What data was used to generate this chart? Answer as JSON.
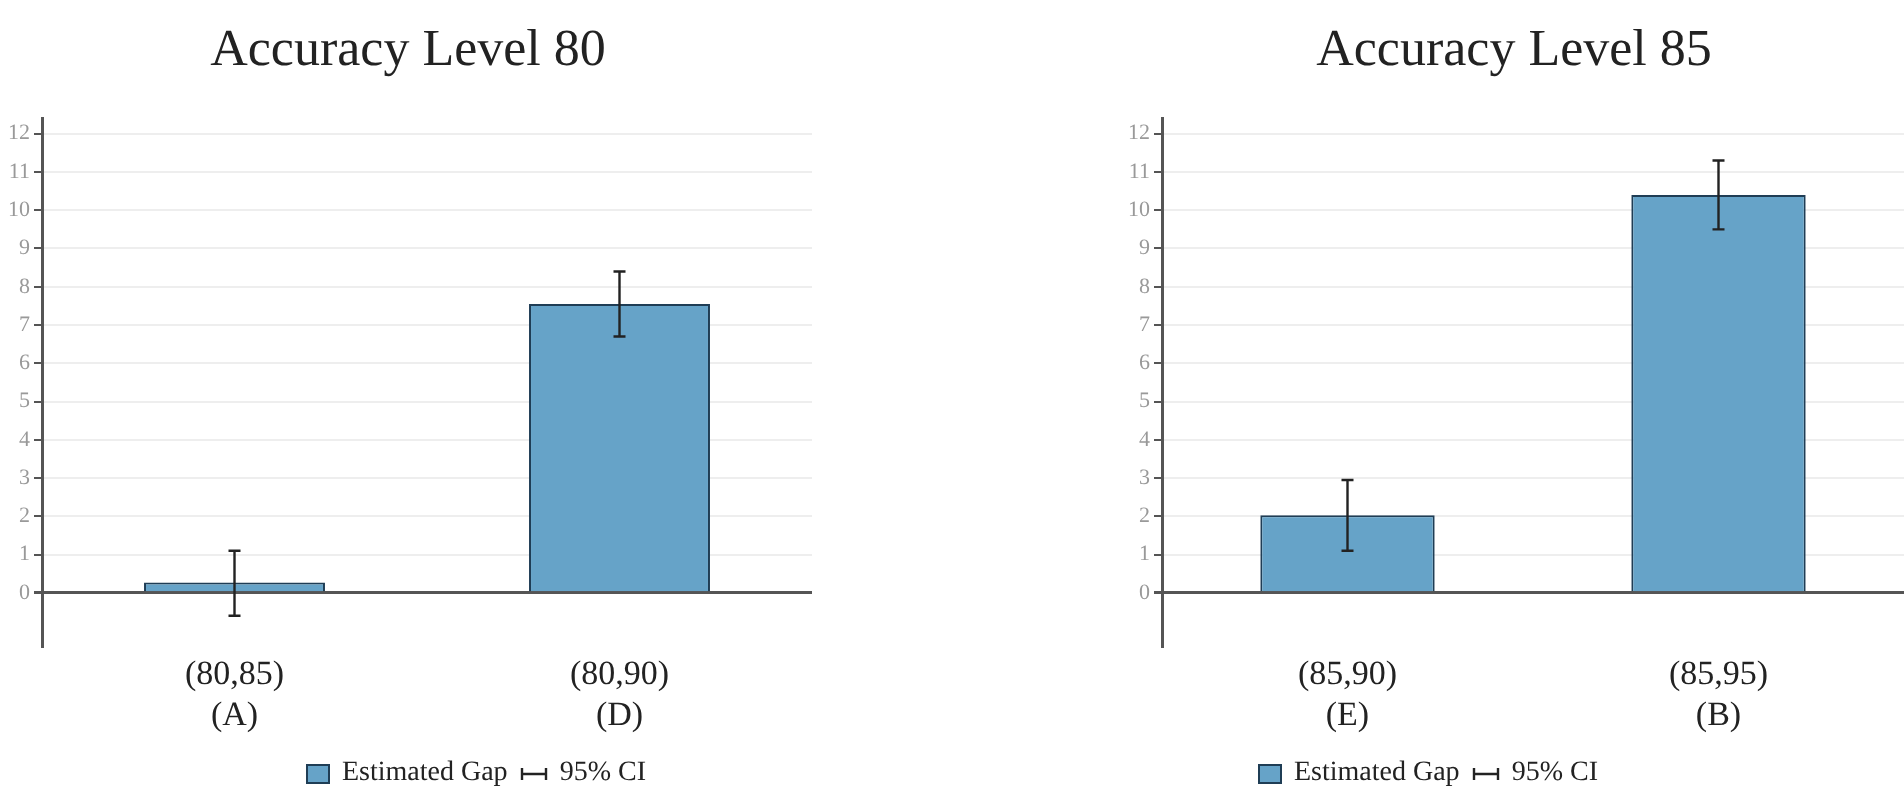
{
  "chart_data": [
    {
      "type": "bar",
      "title": "Accuracy Level 80",
      "categories": [
        "(80,85)\n(A)",
        "(80,90)\n(D)"
      ],
      "series": [
        {
          "name": "Estimated Gap",
          "color": "#66a3c8",
          "values": [
            0.27,
            7.55
          ],
          "errors": [
            [
              -0.6,
              1.1
            ],
            [
              6.7,
              8.4
            ]
          ]
        }
      ],
      "ylim": [
        -1.4,
        12.4
      ],
      "yticks": [
        0,
        1,
        2,
        3,
        4,
        5,
        6,
        7,
        8,
        9,
        10,
        11,
        12
      ],
      "grid": "y",
      "legend": "bottom",
      "annotations": [
        "95% CI"
      ]
    },
    {
      "type": "bar",
      "title": "Accuracy Level 85",
      "categories": [
        "(85,90)\n(E)",
        "(85,95)\n(B)"
      ],
      "series": [
        {
          "name": "Estimated Gap",
          "color": "#66a3c8",
          "values": [
            2.03,
            10.4
          ],
          "errors": [
            [
              1.1,
              2.95
            ],
            [
              9.5,
              11.3
            ]
          ]
        }
      ],
      "ylim": [
        -1.4,
        12.4
      ],
      "yticks": [
        0,
        1,
        2,
        3,
        4,
        5,
        6,
        7,
        8,
        9,
        10,
        11,
        12
      ],
      "grid": "y",
      "legend": "bottom",
      "annotations": [
        "95% CI"
      ]
    }
  ]
}
